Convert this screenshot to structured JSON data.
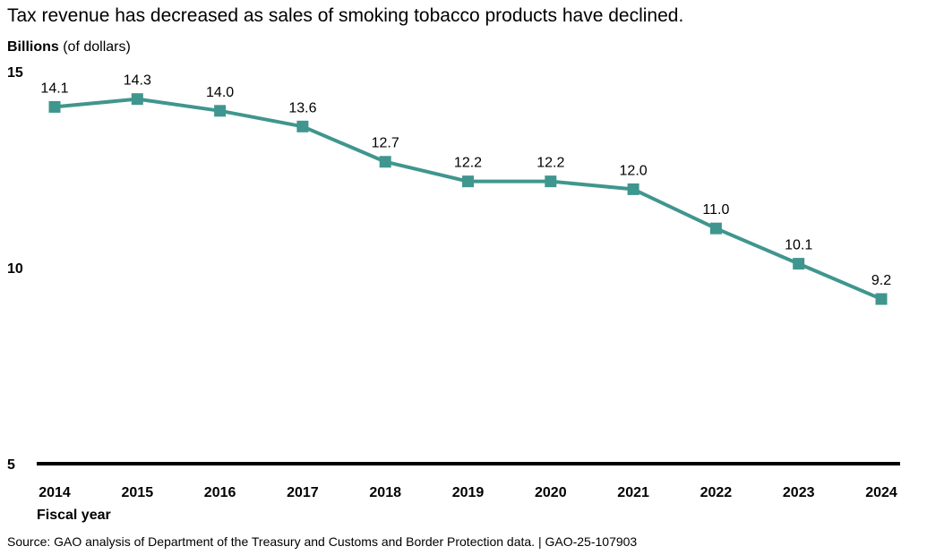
{
  "chart_data": {
    "type": "line",
    "title": "Tax revenue has decreased as sales of smoking tobacco products have declined.",
    "ylabel_bold": "Billions",
    "ylabel_rest": " (of dollars)",
    "xlabel": "Fiscal year",
    "categories": [
      "2014",
      "2015",
      "2016",
      "2017",
      "2018",
      "2019",
      "2020",
      "2021",
      "2022",
      "2023",
      "2024"
    ],
    "values": [
      14.1,
      14.3,
      14.0,
      13.6,
      12.7,
      12.2,
      12.2,
      12.0,
      11.0,
      10.1,
      9.2
    ],
    "data_labels": [
      "14.1",
      "14.3",
      "14.0",
      "13.6",
      "12.7",
      "12.2",
      "12.2",
      "12.0",
      "11.0",
      "10.1",
      "9.2"
    ],
    "ylim": [
      5,
      15
    ],
    "yticks": [
      "5",
      "10",
      "15"
    ],
    "grid": false,
    "line_color": "#3f968e",
    "source": "Source: GAO analysis of Department of the Treasury and Customs and Border Protection data.  |  GAO-25-107903"
  }
}
